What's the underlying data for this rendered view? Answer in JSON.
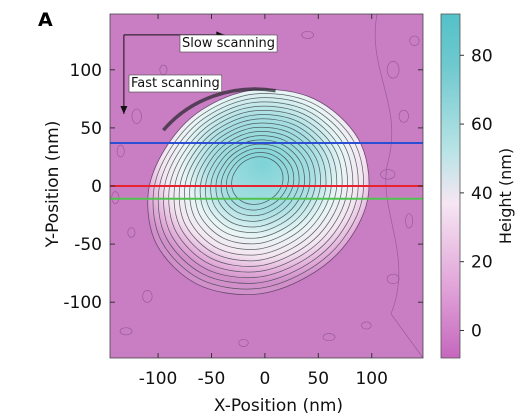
{
  "panel_letter": "A",
  "chart_data": {
    "type": "heatmap",
    "title": "",
    "xlabel": "X-Position (nm)",
    "ylabel": "Y-Position (nm)",
    "xlim": [
      -145,
      148
    ],
    "ylim": [
      -148,
      148
    ],
    "xticks": [
      -100,
      -50,
      0,
      50,
      100
    ],
    "yticks": [
      100,
      50,
      0,
      -50,
      -100
    ],
    "background_color": "#c97ec4",
    "colorbar": {
      "label": "Height (nm)",
      "range": [
        -8,
        92
      ],
      "ticks": [
        80,
        60,
        40,
        20,
        0
      ],
      "colors": [
        "#c567bd",
        "#e0a2d8",
        "#f6e6f2",
        "#b9e4e6",
        "#6ec9cf",
        "#54c1c9"
      ]
    },
    "scan_lines": [
      {
        "y": 37,
        "color": "#2a4fd4"
      },
      {
        "y": 0,
        "color": "#e8222f"
      },
      {
        "y": -11,
        "color": "#4fc24f"
      }
    ],
    "annotations": [
      {
        "text": "Slow scanning",
        "direction": "x"
      },
      {
        "text": "Fast scanning",
        "direction": "y"
      }
    ],
    "feature": {
      "shape": "dome",
      "center": [
        -10,
        0
      ],
      "peak_height": 88,
      "approx_extent_x": [
        -110,
        90
      ],
      "approx_extent_y": [
        -110,
        75
      ]
    }
  }
}
